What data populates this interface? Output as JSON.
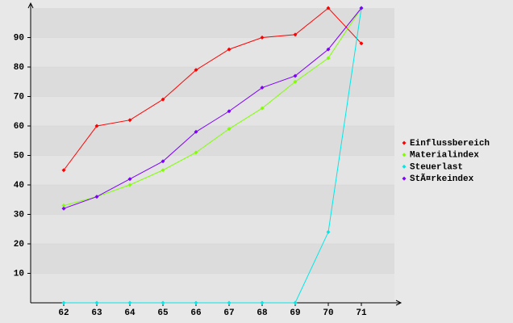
{
  "chart_data": {
    "type": "line",
    "x": [
      62,
      63,
      64,
      65,
      66,
      67,
      68,
      69,
      70,
      71
    ],
    "xlim": [
      61,
      72
    ],
    "xticks": [
      62,
      63,
      64,
      65,
      66,
      67,
      68,
      69,
      70,
      71
    ],
    "ylim": [
      0,
      100
    ],
    "yticks": [
      10,
      20,
      30,
      40,
      50,
      60,
      70,
      80,
      90
    ],
    "grid": true,
    "legend": "right",
    "series": [
      {
        "name": "Einflussbereich",
        "color": "#ff0000",
        "values": [
          45,
          60,
          62,
          69,
          79,
          86,
          90,
          91,
          100,
          88
        ]
      },
      {
        "name": "Materialindex",
        "color": "#80ff00",
        "values": [
          33,
          36,
          40,
          45,
          51,
          59,
          66,
          75,
          83,
          100
        ]
      },
      {
        "name": "Steuerlast",
        "color": "#00e8e8",
        "values": [
          0,
          0,
          0,
          0,
          0,
          0,
          0,
          0,
          24,
          100
        ]
      },
      {
        "name": "StÃ¤rkeindex",
        "color": "#8000ff",
        "values": [
          32,
          36,
          42,
          48,
          58,
          65,
          73,
          77,
          86,
          100
        ]
      }
    ]
  }
}
